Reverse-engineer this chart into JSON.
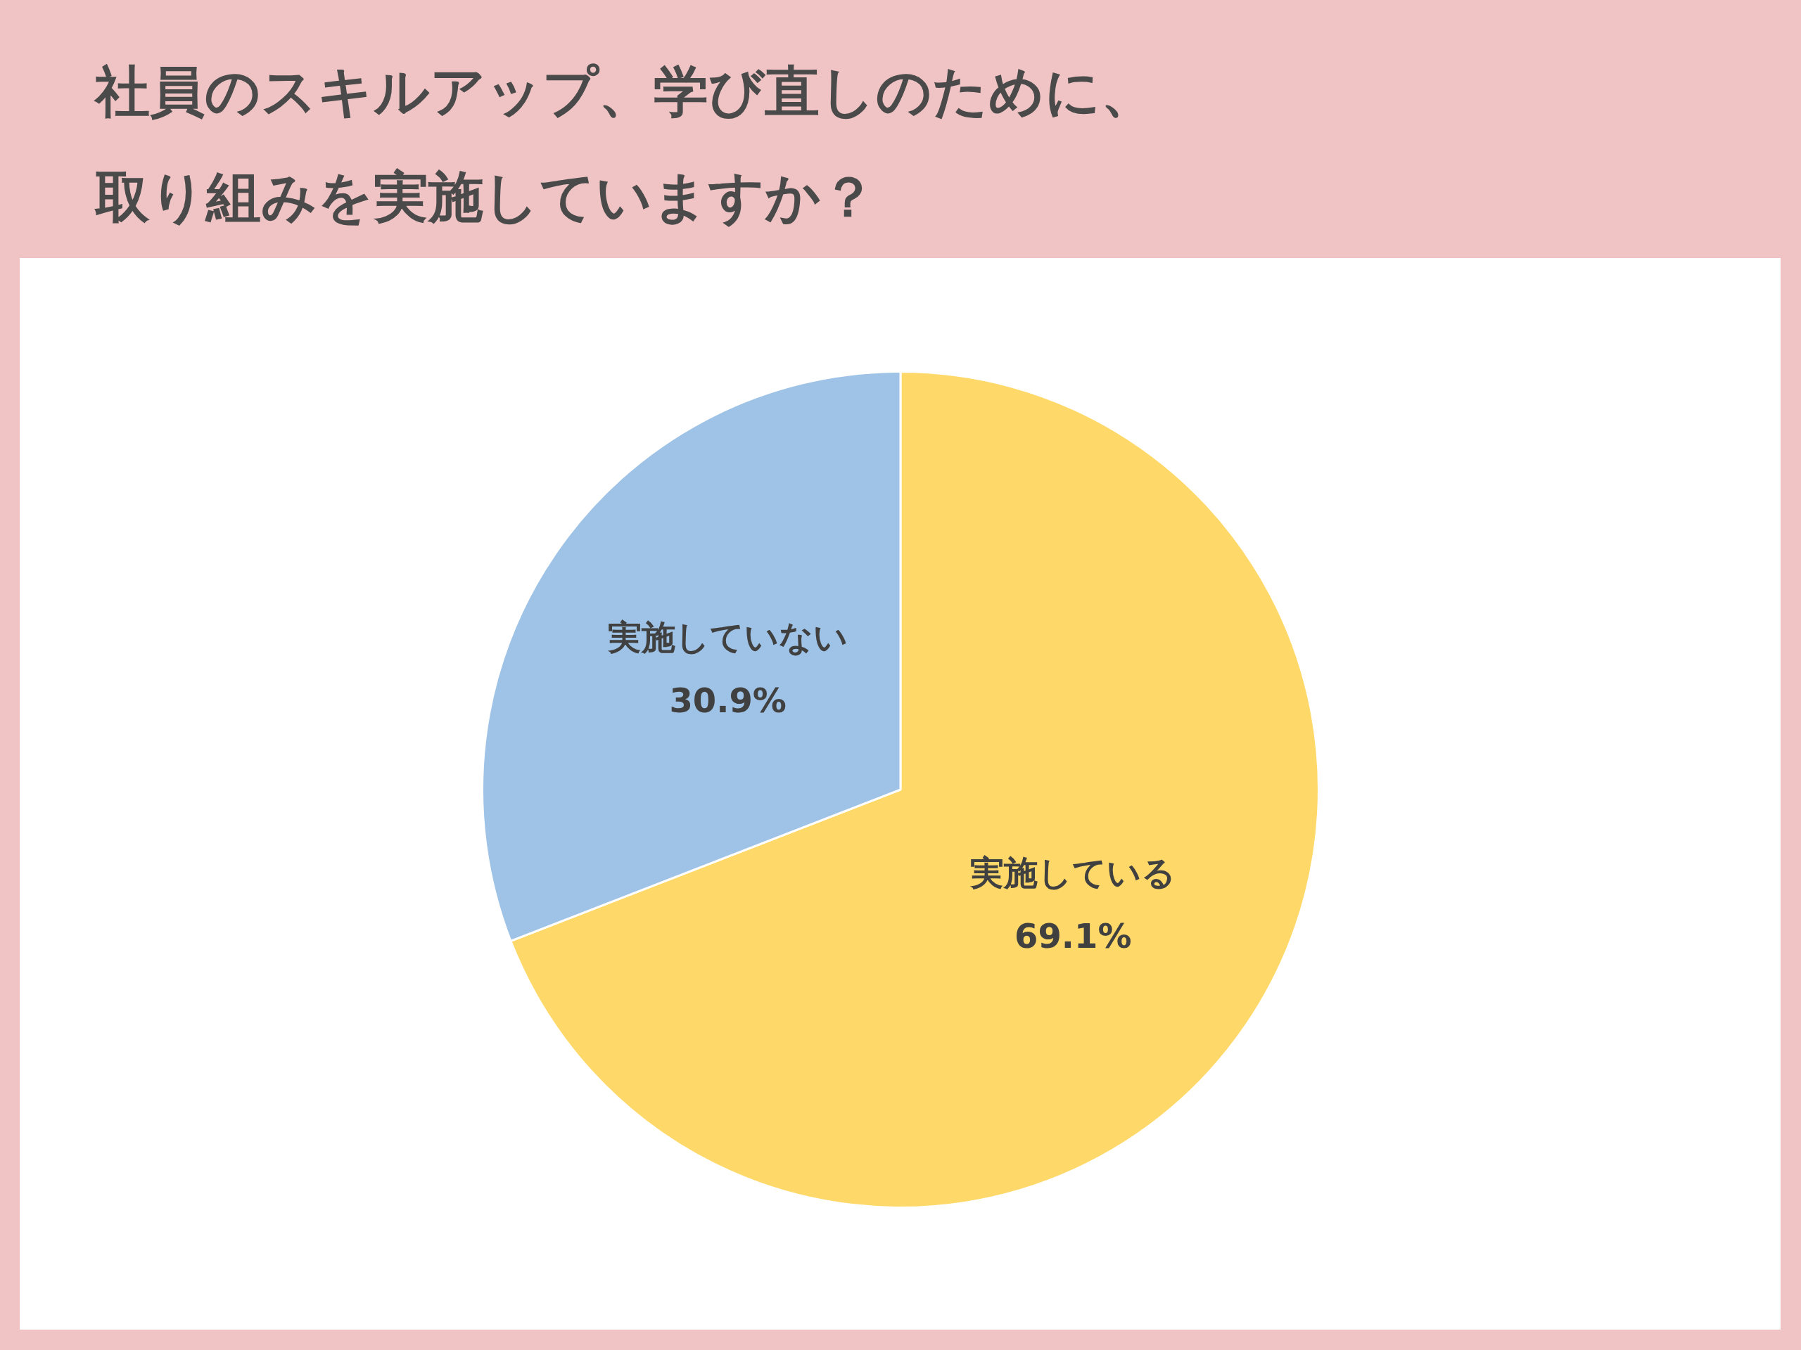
{
  "chart_data": {
    "type": "pie",
    "title": "社員のスキルアップ、学び直しのために、取り組みを実施していますか？",
    "categories": [
      "実施している",
      "実施していない"
    ],
    "values": [
      69.1,
      30.9
    ],
    "colors": [
      "#fed96a",
      "#9fc3e6"
    ],
    "value_labels": [
      "69.1%",
      "30.9%"
    ],
    "legend": false
  }
}
